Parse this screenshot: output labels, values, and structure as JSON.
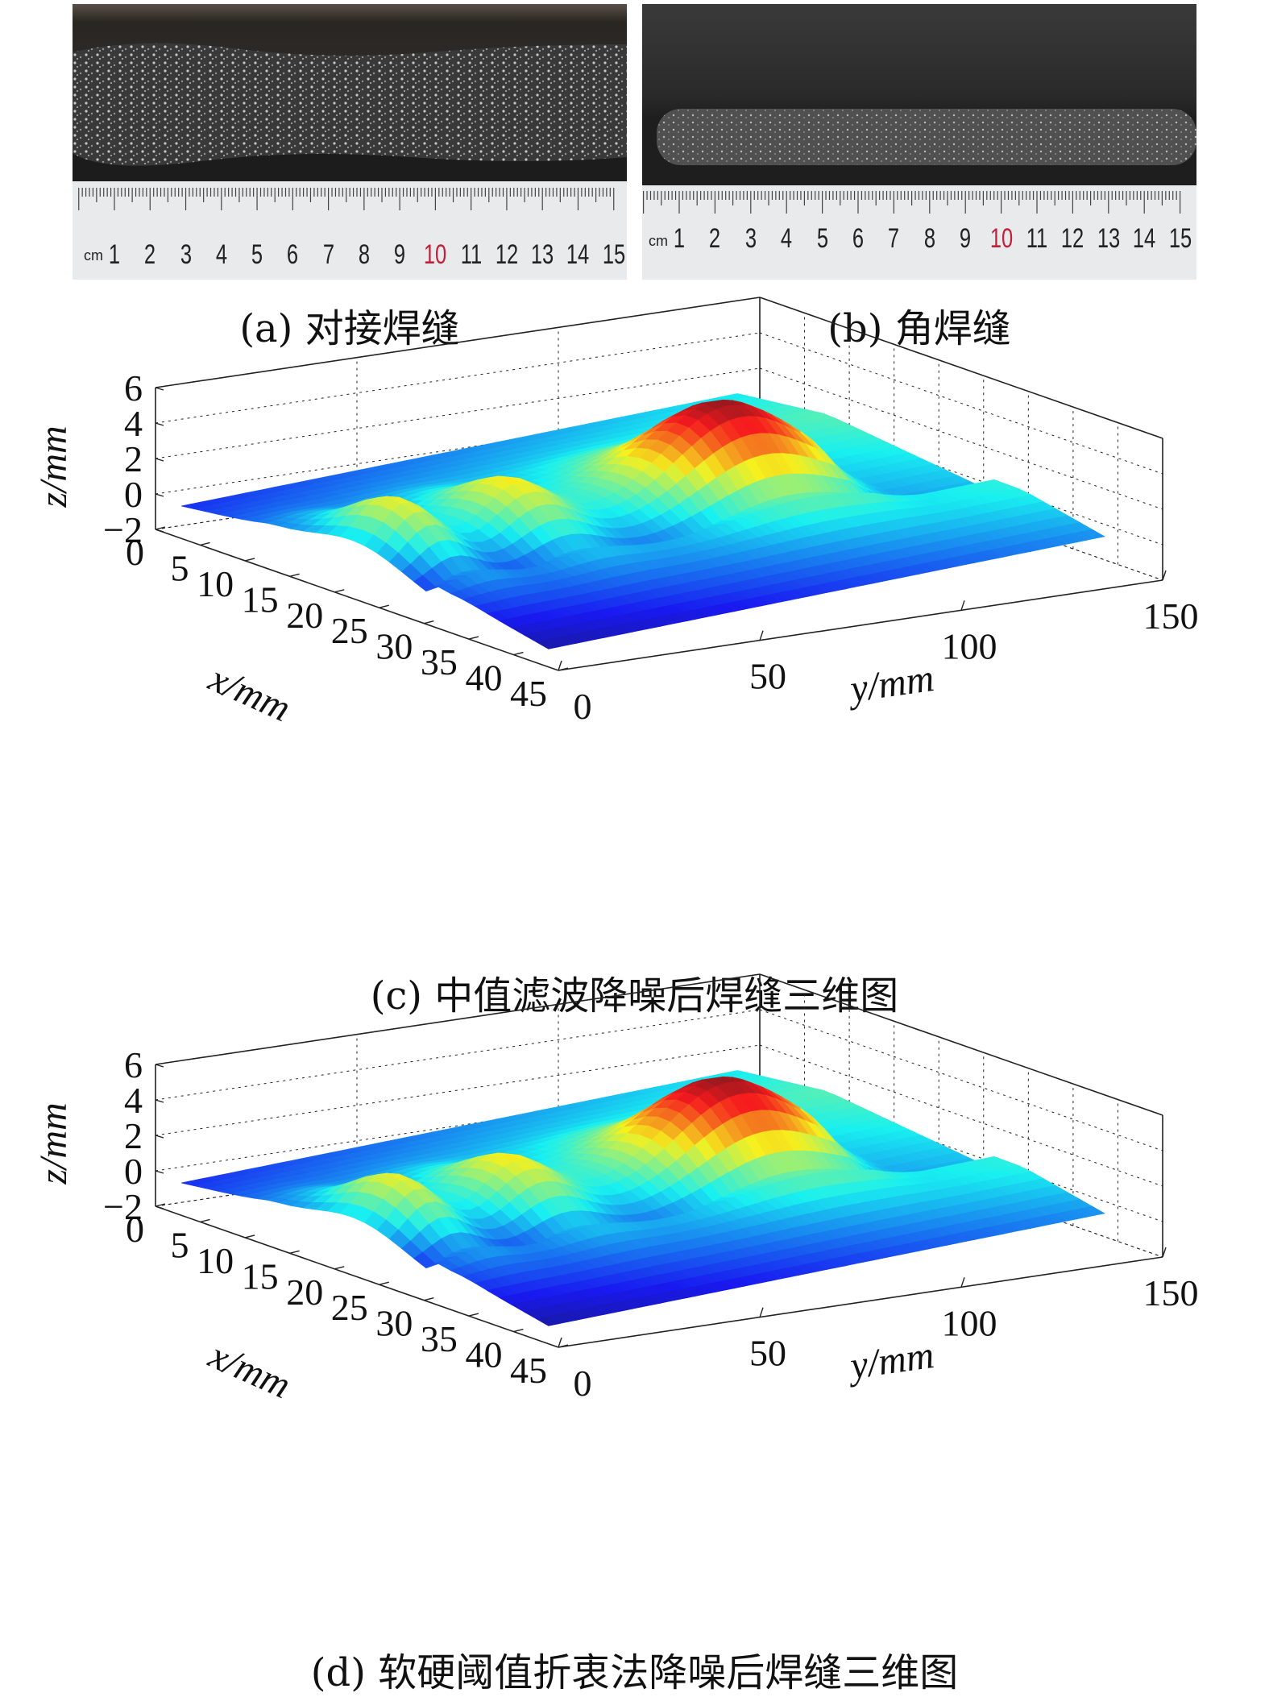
{
  "panels": {
    "a": {
      "caption": "(a) 对接焊缝",
      "ruler_unit": "cm",
      "ruler_numbers": [
        "1",
        "2",
        "3",
        "4",
        "5",
        "6",
        "7",
        "8",
        "9",
        "10",
        "11",
        "12",
        "13",
        "14",
        "15"
      ]
    },
    "b": {
      "caption": "(b) 角焊缝",
      "ruler_unit": "cm",
      "ruler_numbers": [
        "1",
        "2",
        "3",
        "4",
        "5",
        "6",
        "7",
        "8",
        "9",
        "10",
        "11",
        "12",
        "13",
        "14",
        "15"
      ]
    }
  },
  "chart_data": [
    {
      "type": "surface",
      "caption": "(c) 中值滤波降噪后焊缝三维图",
      "xlabel": "x/mm",
      "ylabel": "y/mm",
      "zlabel": "z/mm",
      "x_ticks": [
        "0",
        "5",
        "10",
        "15",
        "20",
        "25",
        "30",
        "35",
        "40",
        "45"
      ],
      "y_ticks": [
        "0",
        "50",
        "100",
        "150"
      ],
      "z_ticks": [
        "6",
        "4",
        "2",
        "0",
        "−2"
      ],
      "xlim": [
        0,
        45
      ],
      "ylim": [
        0,
        150
      ],
      "zlim": [
        -2,
        6
      ],
      "colormap": "jet",
      "grid": true
    },
    {
      "type": "surface",
      "caption": "(d) 软硬阈值折衷法降噪后焊缝三维图",
      "xlabel": "x/mm",
      "ylabel": "y/mm",
      "zlabel": "z/mm",
      "x_ticks": [
        "0",
        "5",
        "10",
        "15",
        "20",
        "25",
        "30",
        "35",
        "40",
        "45"
      ],
      "y_ticks": [
        "0",
        "50",
        "100",
        "150"
      ],
      "z_ticks": [
        "6",
        "4",
        "2",
        "0",
        "−2"
      ],
      "xlim": [
        0,
        45
      ],
      "ylim": [
        0,
        150
      ],
      "zlim": [
        -2,
        6
      ],
      "colormap": "jet",
      "grid": true
    }
  ]
}
